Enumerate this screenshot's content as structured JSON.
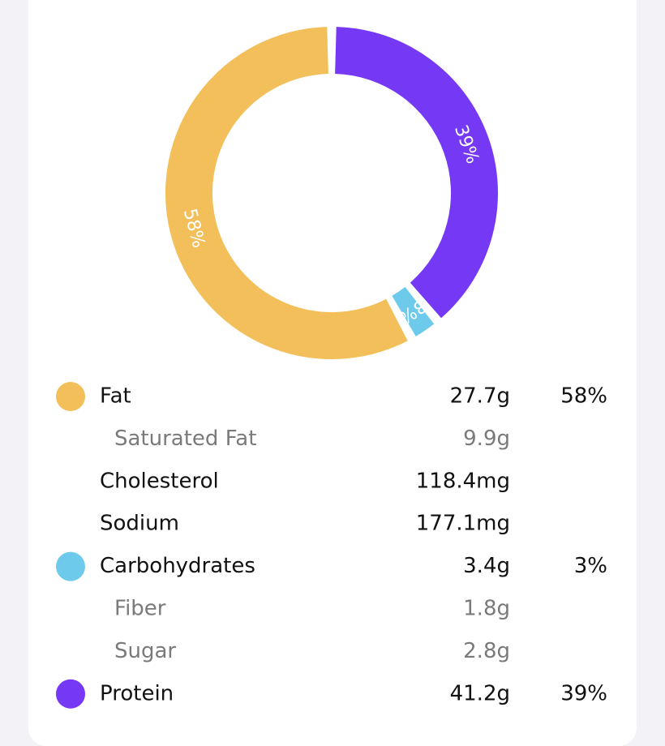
{
  "chart_data": {
    "type": "pie",
    "donut": true,
    "values": [
      58,
      3,
      39
    ],
    "value_labels": [
      "58%",
      "3%",
      "39%"
    ],
    "colors": [
      "#f3bf5a",
      "#6ecaeb",
      "#7538f5"
    ]
  },
  "table": {
    "rows": [
      {
        "label": "Fat",
        "amount": "27.7g",
        "percent": "58%",
        "dot": "#f3bf5a"
      },
      {
        "label": "Saturated Fat",
        "amount": "9.9g",
        "secondary": true
      },
      {
        "label": "Cholesterol",
        "amount": "118.4mg"
      },
      {
        "label": "Sodium",
        "amount": "177.1mg"
      },
      {
        "label": "Carbohydrates",
        "amount": "3.4g",
        "percent": "3%",
        "dot": "#6ecaeb"
      },
      {
        "label": "Fiber",
        "amount": "1.8g",
        "secondary": true
      },
      {
        "label": "Sugar",
        "amount": "2.8g",
        "secondary": true
      },
      {
        "label": "Protein",
        "amount": "41.2g",
        "percent": "39%",
        "dot": "#7538f5"
      }
    ]
  }
}
